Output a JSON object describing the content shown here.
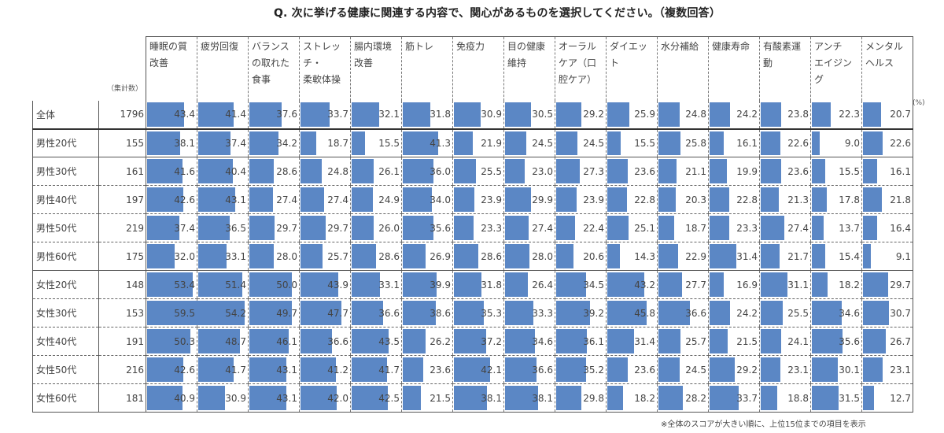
{
  "chart_data": {
    "type": "table",
    "title": "Q. 次に挙げる健康に関連する内容で、関心があるものを選択してください。（複数回答）",
    "count_header": "（集計数）",
    "unit": "(%)",
    "note": "※全体のスコアが大きい順に、上位15位までの項目を表示",
    "columns": [
      [
        "睡眠の質",
        "改善"
      ],
      [
        "疲労回復"
      ],
      [
        "バランス",
        "の取れた",
        "食事"
      ],
      [
        "ストレッ",
        "チ・",
        "柔軟体操"
      ],
      [
        "腸内環境",
        "改善"
      ],
      [
        "筋トレ"
      ],
      [
        "免疫力"
      ],
      [
        "目の健康",
        "維持"
      ],
      [
        "オーラル",
        "ケア（口",
        "腔ケア）"
      ],
      [
        "ダイエッ",
        "ト"
      ],
      [
        "水分補給"
      ],
      [
        "健康寿命"
      ],
      [
        "有酸素運",
        "動"
      ],
      [
        "アンチ",
        "エイジン",
        "グ"
      ],
      [
        "メンタル",
        "ヘルス"
      ]
    ],
    "rows": [
      {
        "label": "全体",
        "n": "1796",
        "values": [
          "43.4",
          "41.4",
          "37.6",
          "33.7",
          "32.1",
          "31.8",
          "30.9",
          "30.5",
          "29.2",
          "25.9",
          "24.8",
          "24.2",
          "23.8",
          "22.3",
          "20.7"
        ]
      },
      {
        "label": "男性20代",
        "n": "155",
        "values": [
          "38.1",
          "37.4",
          "34.2",
          "18.7",
          "15.5",
          "41.3",
          "21.9",
          "24.5",
          "24.5",
          "15.5",
          "25.8",
          "16.1",
          "22.6",
          "9.0",
          "22.6"
        ]
      },
      {
        "label": "男性30代",
        "n": "161",
        "values": [
          "41.6",
          "40.4",
          "28.6",
          "24.8",
          "26.1",
          "36.0",
          "25.5",
          "23.0",
          "27.3",
          "23.6",
          "21.1",
          "19.9",
          "23.6",
          "15.5",
          "16.1"
        ]
      },
      {
        "label": "男性40代",
        "n": "197",
        "values": [
          "42.6",
          "43.1",
          "27.4",
          "27.4",
          "24.9",
          "34.0",
          "23.9",
          "29.9",
          "23.9",
          "22.8",
          "20.3",
          "22.8",
          "21.3",
          "17.8",
          "21.8"
        ]
      },
      {
        "label": "男性50代",
        "n": "219",
        "values": [
          "37.4",
          "36.5",
          "29.7",
          "29.7",
          "26.0",
          "35.6",
          "23.3",
          "27.4",
          "22.4",
          "25.1",
          "18.7",
          "23.3",
          "27.4",
          "13.7",
          "16.4"
        ]
      },
      {
        "label": "男性60代",
        "n": "175",
        "values": [
          "32.0",
          "33.1",
          "28.0",
          "25.7",
          "28.6",
          "26.9",
          "28.6",
          "28.0",
          "20.6",
          "14.3",
          "22.9",
          "31.4",
          "21.7",
          "15.4",
          "9.1"
        ]
      },
      {
        "label": "女性20代",
        "n": "148",
        "values": [
          "53.4",
          "51.4",
          "50.0",
          "43.9",
          "33.1",
          "39.9",
          "31.8",
          "26.4",
          "34.5",
          "43.2",
          "27.7",
          "16.9",
          "31.1",
          "18.2",
          "29.7"
        ]
      },
      {
        "label": "女性30代",
        "n": "153",
        "values": [
          "59.5",
          "54.2",
          "49.7",
          "47.7",
          "36.6",
          "38.6",
          "35.3",
          "33.3",
          "39.2",
          "45.8",
          "36.6",
          "24.2",
          "25.5",
          "34.6",
          "30.7"
        ]
      },
      {
        "label": "女性40代",
        "n": "191",
        "values": [
          "50.3",
          "48.7",
          "46.1",
          "36.6",
          "43.5",
          "26.2",
          "37.2",
          "34.6",
          "36.1",
          "31.4",
          "25.7",
          "21.5",
          "24.1",
          "35.6",
          "26.7"
        ]
      },
      {
        "label": "女性50代",
        "n": "216",
        "values": [
          "42.6",
          "41.7",
          "43.1",
          "41.2",
          "41.7",
          "23.6",
          "42.1",
          "36.6",
          "35.2",
          "23.6",
          "24.5",
          "29.2",
          "23.1",
          "30.1",
          "23.1"
        ]
      },
      {
        "label": "女性60代",
        "n": "181",
        "values": [
          "40.9",
          "30.9",
          "43.1",
          "42.0",
          "42.5",
          "21.5",
          "38.1",
          "38.1",
          "29.8",
          "18.2",
          "28.2",
          "33.7",
          "18.8",
          "31.5",
          "12.7"
        ]
      }
    ],
    "bar_color": "#5b87c5",
    "bar_scale_max": 100
  }
}
